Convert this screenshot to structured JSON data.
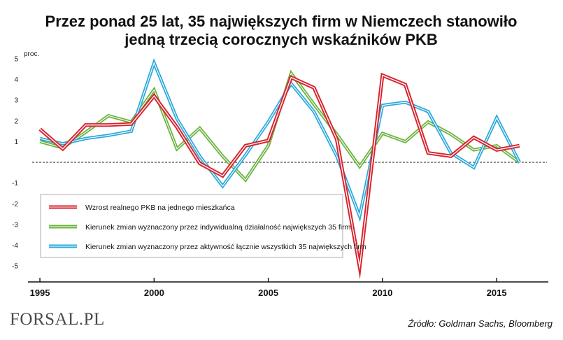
{
  "chart_data": {
    "type": "line",
    "title_lines": [
      "Przez ponad 25 lat, 35 największych firm w Niemczech stanowiło",
      "jedną trzecią corocznych wskaźników PKB"
    ],
    "ylabel": "proc.",
    "ylim": [
      -5.4,
      5.2
    ],
    "yticks": [
      5,
      4,
      3,
      2,
      1,
      -1,
      -2,
      -3,
      -4,
      -5
    ],
    "xlim": [
      1994.6,
      2017.2
    ],
    "xticks": [
      1995,
      2000,
      2005,
      2010,
      2015
    ],
    "zero_line": "dashed",
    "legend_position": "lower-left",
    "series": [
      {
        "name": "Wzrost realnego PKB na jednego mieszkańca",
        "color": "#d9232d",
        "x": [
          1995,
          1996,
          1997,
          1998,
          1999,
          2000,
          2001,
          2002,
          2003,
          2004,
          2005,
          2006,
          2007,
          2008,
          2009,
          2010,
          2011,
          2012,
          2013,
          2014,
          2015,
          2016
        ],
        "values": [
          1.6,
          0.65,
          1.8,
          1.8,
          1.85,
          3.2,
          1.7,
          -0.05,
          -0.65,
          0.8,
          1.05,
          4.1,
          3.6,
          1.1,
          -5.05,
          4.2,
          3.75,
          0.45,
          0.3,
          1.2,
          0.6,
          0.8
        ]
      },
      {
        "name": "Kierunek zmian wyznaczony przez indywidualną działalność największych 35 firm",
        "color": "#6ab43e",
        "x": [
          1995,
          1996,
          1997,
          1998,
          1999,
          2000,
          2001,
          2002,
          2003,
          2004,
          2005,
          2006,
          2007,
          2008,
          2009,
          2010,
          2011,
          2012,
          2013,
          2014,
          2015,
          2016
        ],
        "values": [
          1.0,
          0.7,
          1.45,
          2.25,
          1.95,
          3.5,
          0.65,
          1.65,
          0.3,
          -0.85,
          0.8,
          4.3,
          2.8,
          1.35,
          -0.2,
          1.4,
          1.0,
          1.95,
          1.35,
          0.6,
          0.8,
          0.0
        ]
      },
      {
        "name": "Kierunek zmian wyznaczony przez aktywność łącznie wszystkich 35 największych firm",
        "color": "#2eaadc",
        "x": [
          1995,
          1996,
          1997,
          1998,
          1999,
          2000,
          2001,
          2002,
          2003,
          2004,
          2005,
          2006,
          2007,
          2008,
          2009,
          2010,
          2011,
          2012,
          2013,
          2014,
          2015,
          2016
        ],
        "values": [
          1.15,
          0.9,
          1.15,
          1.3,
          1.5,
          4.8,
          2.1,
          0.3,
          -1.15,
          0.35,
          1.95,
          3.8,
          2.45,
          0.3,
          -2.6,
          2.75,
          2.9,
          2.45,
          0.45,
          -0.25,
          2.15,
          0.0
        ]
      }
    ]
  },
  "footer": {
    "source": "Źródło:  Goldman Sachs, Bloomberg",
    "logo": "FORSAL.PL"
  }
}
